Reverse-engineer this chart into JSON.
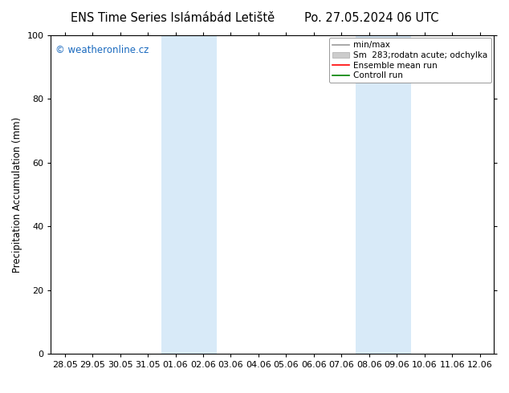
{
  "title_left": "ENS Time Series Islámábád Letiště",
  "title_right": "Po. 27.05.2024 06 UTC",
  "ylabel": "Precipitation Accumulation (mm)",
  "ylim": [
    0,
    100
  ],
  "yticks": [
    0,
    20,
    40,
    60,
    80,
    100
  ],
  "bg_color": "#ffffff",
  "plot_bg_color": "#ffffff",
  "watermark_text": "© weatheronline.cz",
  "watermark_color": "#1a6abf",
  "shaded_regions": [
    {
      "xstart": 4,
      "xend": 6,
      "color": "#d8eaf8"
    },
    {
      "xstart": 11,
      "xend": 13,
      "color": "#d8eaf8"
    }
  ],
  "x_tick_labels": [
    "28.05",
    "29.05",
    "30.05",
    "31.05",
    "01.06",
    "02.06",
    "03.06",
    "04.06",
    "05.06",
    "06.06",
    "07.06",
    "08.06",
    "09.06",
    "10.06",
    "11.06",
    "12.06"
  ],
  "legend_entries": [
    {
      "label": "min/max",
      "type": "line",
      "color": "#999999",
      "lw": 1.2
    },
    {
      "label": "Sm  283;rodatn acute; odchylka",
      "type": "patch",
      "color": "#cccccc"
    },
    {
      "label": "Ensemble mean run",
      "type": "line",
      "color": "#ff0000",
      "lw": 1.2
    },
    {
      "label": "Controll run",
      "type": "line",
      "color": "#008000",
      "lw": 1.2
    }
  ],
  "title_fontsize": 10.5,
  "label_fontsize": 8.5,
  "tick_fontsize": 8,
  "legend_fontsize": 7.5,
  "watermark_fontsize": 8.5
}
